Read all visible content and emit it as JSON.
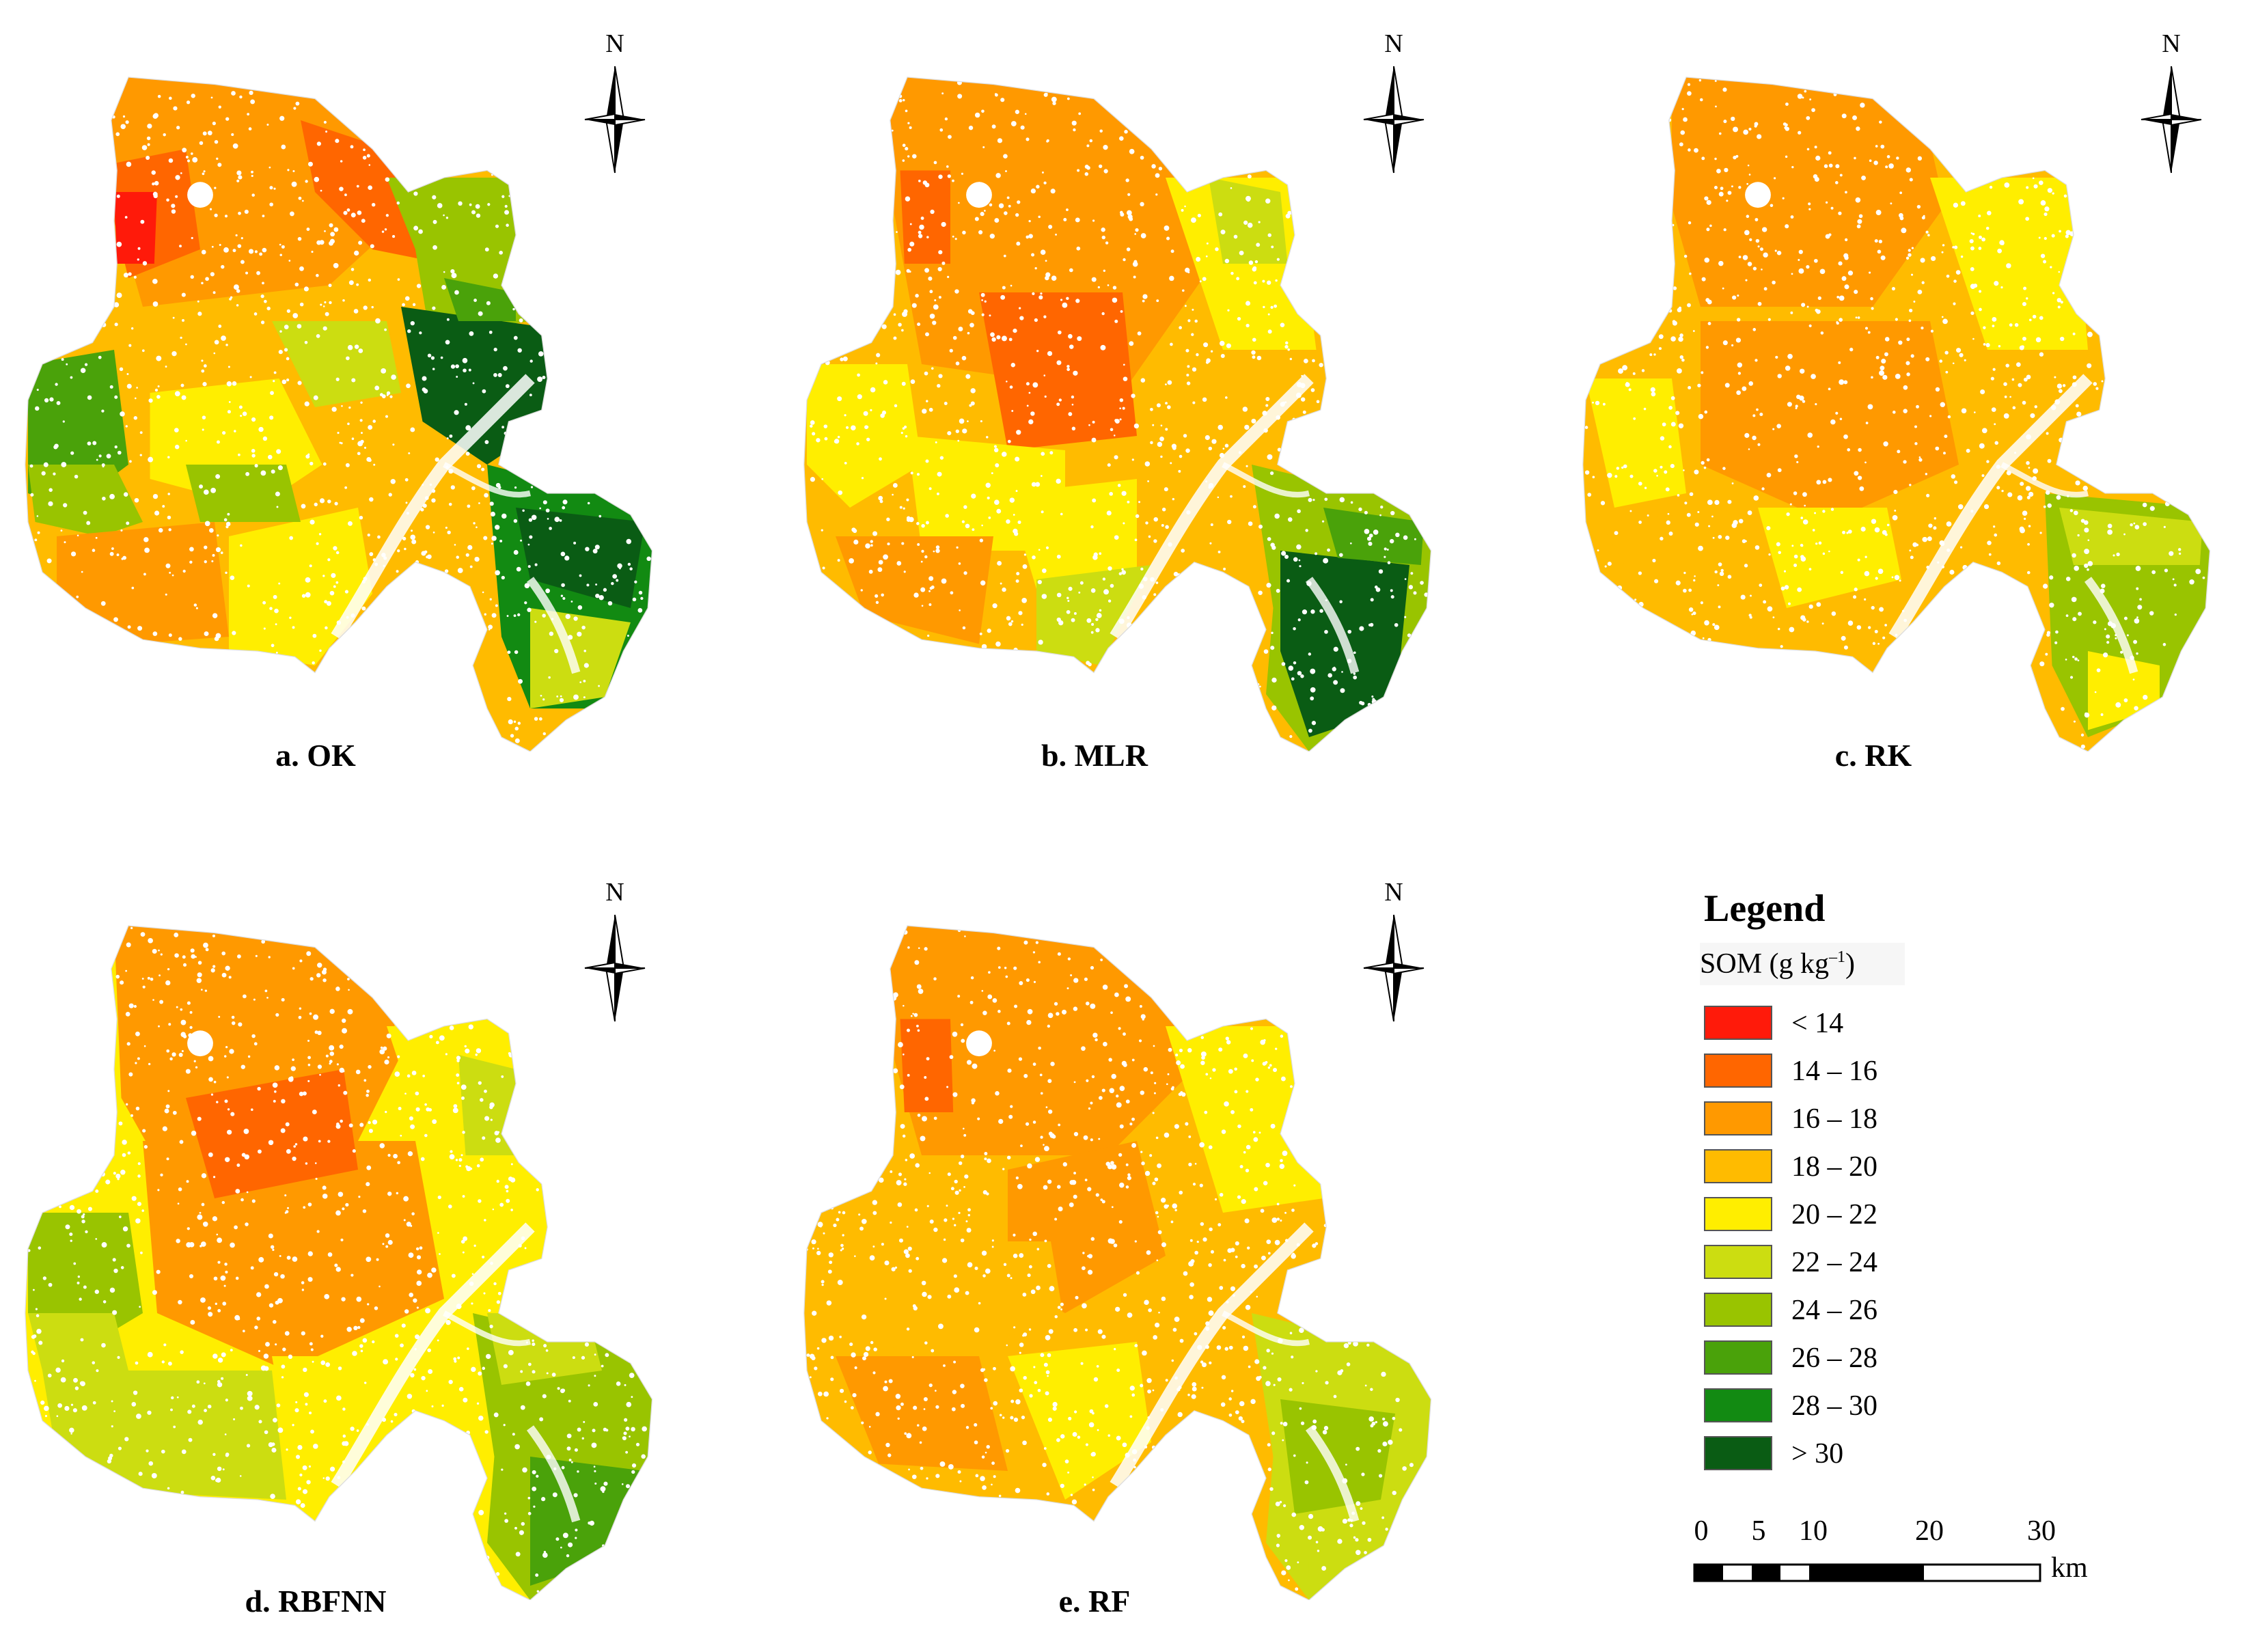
{
  "panels": [
    {
      "id": "a",
      "caption": "a. OK",
      "scheme": "ok"
    },
    {
      "id": "b",
      "caption": "b. MLR",
      "scheme": "mlr"
    },
    {
      "id": "c",
      "caption": "c. RK",
      "scheme": "rk"
    },
    {
      "id": "d",
      "caption": "d. RBFNN",
      "scheme": "rbfnn"
    },
    {
      "id": "e",
      "caption": "e. RF",
      "scheme": "rf"
    }
  ],
  "north_label": "N",
  "legend": {
    "title": "Legend",
    "subtitle_prefix": "SOM (g  kg",
    "subtitle_exp": "–1",
    "subtitle_suffix": ")",
    "classes": [
      {
        "label": "< 14",
        "color": "#ff1a0a"
      },
      {
        "label": "14 – 16",
        "color": "#ff6600"
      },
      {
        "label": "16 – 18",
        "color": "#ff9900"
      },
      {
        "label": "18 – 20",
        "color": "#ffbb00"
      },
      {
        "label": "20 – 22",
        "color": "#ffee00"
      },
      {
        "label": "22 – 24",
        "color": "#ccdd11"
      },
      {
        "label": "24 – 26",
        "color": "#99c400"
      },
      {
        "label": "26 – 28",
        "color": "#4aa20a"
      },
      {
        "label": "28 – 30",
        "color": "#128a12"
      },
      {
        "label": "> 30",
        "color": "#0a5c14"
      }
    ]
  },
  "scale_bar": {
    "ticks": [
      "0",
      "5",
      "10",
      "20",
      "30"
    ],
    "unit": "km"
  }
}
